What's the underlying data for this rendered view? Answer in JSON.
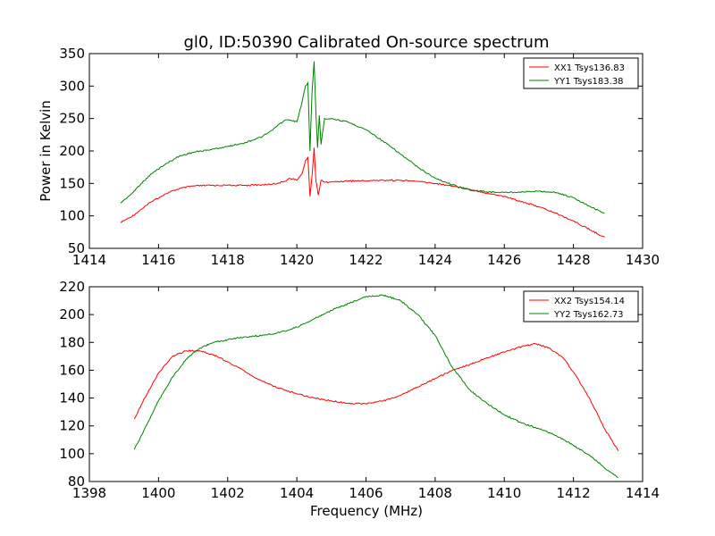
{
  "chart_data": [
    {
      "type": "line",
      "title": "gl0, ID:50390 Calibrated On-source spectrum",
      "xlabel": "",
      "ylabel": "Power in Kelvin",
      "xlim": [
        1414,
        1430
      ],
      "ylim": [
        50,
        350
      ],
      "xticks": [
        1414,
        1416,
        1418,
        1420,
        1422,
        1424,
        1426,
        1428,
        1430
      ],
      "yticks": [
        50,
        100,
        150,
        200,
        250,
        300,
        350
      ],
      "legend_position": "top-right",
      "series": [
        {
          "name": "XX1 Tsys136.83",
          "color": "#ff0000",
          "x": [
            1414.9,
            1415.2,
            1415.5,
            1415.8,
            1416.2,
            1416.6,
            1417.0,
            1417.5,
            1418.0,
            1418.5,
            1419.0,
            1419.3,
            1419.6,
            1419.8,
            1420.0,
            1420.15,
            1420.25,
            1420.32,
            1420.38,
            1420.45,
            1420.5,
            1420.55,
            1420.62,
            1420.7,
            1420.8,
            1421.0,
            1421.5,
            1422.0,
            1422.5,
            1423.0,
            1423.5,
            1424.0,
            1424.5,
            1425.0,
            1425.5,
            1426.0,
            1426.5,
            1427.0,
            1427.5,
            1428.0,
            1428.5,
            1428.9
          ],
          "y": [
            90,
            98,
            110,
            122,
            134,
            142,
            146,
            147,
            147,
            147,
            148,
            149,
            152,
            158,
            155,
            165,
            185,
            190,
            130,
            168,
            205,
            155,
            132,
            155,
            152,
            152,
            154,
            154,
            155,
            155,
            153,
            150,
            146,
            141,
            135,
            130,
            122,
            114,
            104,
            92,
            78,
            67
          ]
        },
        {
          "name": "YY1 Tsys183.38",
          "color": "#008000",
          "x": [
            1414.9,
            1415.2,
            1415.5,
            1415.8,
            1416.2,
            1416.6,
            1417.0,
            1417.5,
            1418.0,
            1418.5,
            1419.0,
            1419.3,
            1419.5,
            1419.7,
            1420.0,
            1420.15,
            1420.25,
            1420.32,
            1420.38,
            1420.44,
            1420.5,
            1420.55,
            1420.6,
            1420.65,
            1420.7,
            1420.8,
            1421.0,
            1421.5,
            1422.0,
            1422.5,
            1423.0,
            1423.5,
            1424.0,
            1424.5,
            1425.0,
            1425.5,
            1426.0,
            1426.5,
            1427.0,
            1427.5,
            1428.0,
            1428.5,
            1428.9
          ],
          "y": [
            120,
            133,
            150,
            165,
            180,
            192,
            198,
            202,
            207,
            213,
            222,
            232,
            242,
            248,
            245,
            275,
            300,
            305,
            200,
            290,
            338,
            260,
            205,
            255,
            210,
            250,
            250,
            244,
            233,
            215,
            195,
            175,
            158,
            148,
            140,
            137,
            136,
            137,
            138,
            136,
            128,
            114,
            104
          ]
        }
      ]
    },
    {
      "type": "line",
      "title": "",
      "xlabel": "Frequency (MHz)",
      "ylabel": "",
      "xlim": [
        1398,
        1414
      ],
      "ylim": [
        80,
        220
      ],
      "xticks": [
        1398,
        1400,
        1402,
        1404,
        1406,
        1408,
        1410,
        1412,
        1414
      ],
      "yticks": [
        80,
        100,
        120,
        140,
        160,
        180,
        200,
        220
      ],
      "legend_position": "top-right",
      "series": [
        {
          "name": "XX2 Tsys154.14",
          "color": "#ff0000",
          "x": [
            1399.3,
            1399.6,
            1400.0,
            1400.4,
            1400.8,
            1401.2,
            1401.6,
            1402.0,
            1402.5,
            1403.0,
            1403.5,
            1404.0,
            1404.5,
            1405.0,
            1405.5,
            1406.0,
            1406.5,
            1407.0,
            1407.5,
            1408.0,
            1408.5,
            1409.0,
            1409.5,
            1410.0,
            1410.5,
            1410.9,
            1411.3,
            1411.7,
            1412.1,
            1412.5,
            1412.9,
            1413.3
          ],
          "y": [
            125,
            140,
            158,
            170,
            174,
            174,
            171,
            166,
            159,
            152,
            147,
            143,
            140,
            138,
            136,
            136,
            138,
            142,
            148,
            154,
            160,
            164,
            169,
            173,
            177,
            179,
            176,
            169,
            155,
            138,
            118,
            102
          ]
        },
        {
          "name": "YY2 Tsys162.73",
          "color": "#008000",
          "x": [
            1399.3,
            1399.6,
            1400.0,
            1400.4,
            1400.8,
            1401.2,
            1401.6,
            1402.0,
            1402.5,
            1403.0,
            1403.5,
            1404.0,
            1404.5,
            1405.0,
            1405.5,
            1406.0,
            1406.5,
            1407.0,
            1407.5,
            1408.0,
            1408.5,
            1409.0,
            1409.5,
            1410.0,
            1410.5,
            1411.0,
            1411.5,
            1412.0,
            1412.5,
            1413.0,
            1413.3
          ],
          "y": [
            103,
            118,
            138,
            155,
            168,
            176,
            180,
            182,
            184,
            185,
            187,
            191,
            197,
            203,
            208,
            213,
            214,
            210,
            200,
            185,
            162,
            146,
            136,
            128,
            122,
            118,
            113,
            106,
            98,
            88,
            83
          ]
        }
      ]
    }
  ]
}
